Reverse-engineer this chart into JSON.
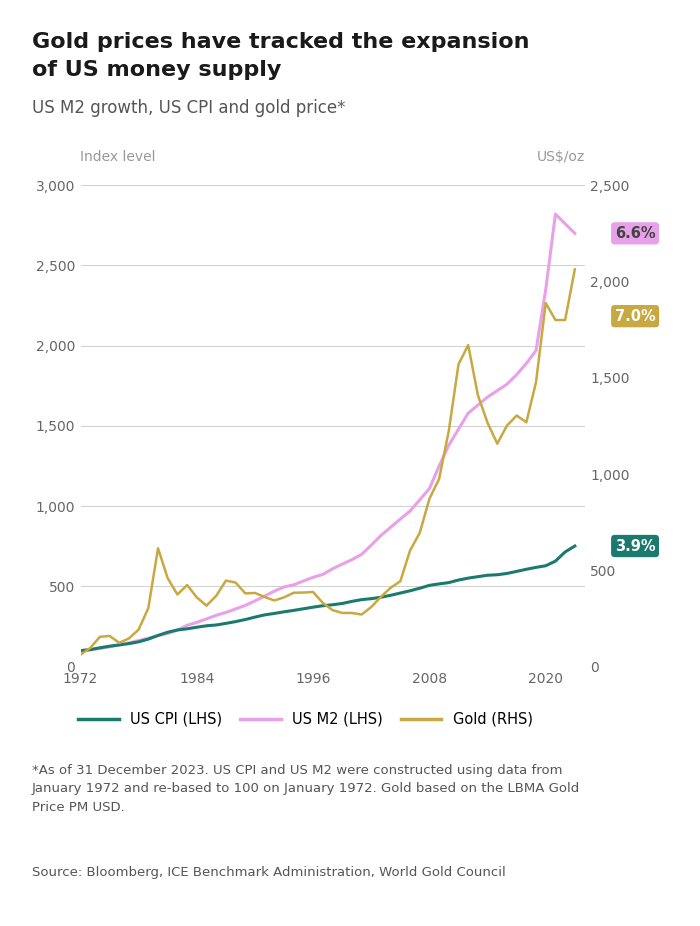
{
  "title_line1": "Gold prices have tracked the expansion",
  "title_line2": "of US money supply",
  "subtitle": "US M2 growth, US CPI and gold price*",
  "ylabel_left": "Index level",
  "ylabel_right": "US$/oz",
  "footnote": "*As of 31 December 2023. US CPI and US M2 were constructed using data from\nJanuary 1972 and re-based to 100 on January 1972. Gold based on the LBMA Gold\nPrice PM USD.",
  "source": "Source: Bloomberg, ICE Benchmark Administration, World Gold Council",
  "cpi_color": "#1a7a6e",
  "m2_color": "#e8a0e8",
  "gold_color": "#c8a840",
  "badge_cpi_color": "#1a7a6e",
  "badge_m2_color": "#e8a0e8",
  "badge_gold_color": "#c8a840",
  "badge_m2_text_color": "#333333",
  "years": [
    1972,
    1973,
    1974,
    1975,
    1976,
    1977,
    1978,
    1979,
    1980,
    1981,
    1982,
    1983,
    1984,
    1985,
    1986,
    1987,
    1988,
    1989,
    1990,
    1991,
    1992,
    1993,
    1994,
    1995,
    1996,
    1997,
    1998,
    1999,
    2000,
    2001,
    2002,
    2003,
    2004,
    2005,
    2006,
    2007,
    2008,
    2009,
    2010,
    2011,
    2012,
    2013,
    2014,
    2015,
    2016,
    2017,
    2018,
    2019,
    2020,
    2021,
    2022,
    2023
  ],
  "cpi": [
    100,
    106,
    118,
    128,
    136,
    144,
    155,
    172,
    195,
    215,
    229,
    236,
    246,
    255,
    260,
    270,
    281,
    294,
    309,
    323,
    332,
    342,
    351,
    361,
    371,
    380,
    386,
    394,
    407,
    418,
    424,
    433,
    445,
    459,
    473,
    489,
    507,
    516,
    524,
    540,
    552,
    561,
    570,
    573,
    581,
    594,
    607,
    619,
    629,
    658,
    715,
    752
  ],
  "m2": [
    100,
    107,
    113,
    124,
    135,
    149,
    163,
    178,
    194,
    207,
    228,
    258,
    276,
    298,
    320,
    338,
    360,
    382,
    410,
    440,
    471,
    497,
    510,
    534,
    557,
    575,
    610,
    639,
    667,
    700,
    757,
    818,
    869,
    920,
    970,
    1040,
    1110,
    1250,
    1380,
    1480,
    1580,
    1630,
    1680,
    1720,
    1760,
    1820,
    1890,
    1970,
    2350,
    2820,
    2760,
    2700
  ],
  "gold": [
    63,
    97,
    155,
    160,
    124,
    147,
    193,
    305,
    615,
    459,
    375,
    424,
    360,
    317,
    368,
    447,
    437,
    381,
    383,
    362,
    344,
    360,
    384,
    385,
    388,
    331,
    294,
    279,
    279,
    271,
    310,
    363,
    410,
    444,
    603,
    695,
    872,
    975,
    1225,
    1570,
    1670,
    1410,
    1266,
    1158,
    1252,
    1304,
    1269,
    1478,
    1888,
    1800,
    1800,
    2063
  ],
  "xticks": [
    1972,
    1984,
    1996,
    2008,
    2020
  ],
  "ylim_left": [
    0,
    3000
  ],
  "ylim_right": [
    0,
    2500
  ],
  "yticks_left": [
    0,
    500,
    1000,
    1500,
    2000,
    2500,
    3000
  ],
  "yticks_right": [
    0,
    500,
    1000,
    1500,
    2000,
    2500
  ],
  "badge_cpi_text": "3.9%",
  "badge_m2_text": "6.6%",
  "badge_gold_text": "7.0%",
  "badge_m2_y_lhs": 2700,
  "badge_gold_y_rhs": 1820,
  "badge_cpi_y_lhs": 752
}
